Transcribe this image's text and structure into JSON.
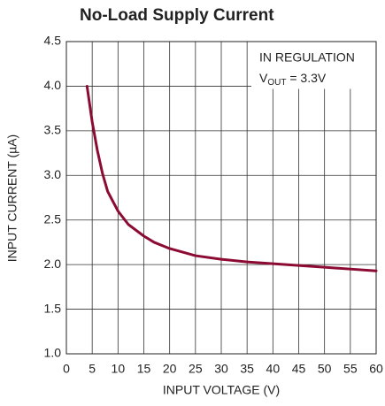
{
  "chart_data": {
    "type": "line",
    "title": "No-Load Supply Current",
    "xlabel": "INPUT VOLTAGE (V)",
    "ylabel": "INPUT CURRENT (µA)",
    "annotation": {
      "line1": "IN REGULATION",
      "line2": [
        "V",
        "OUT",
        " = 3.3V"
      ]
    },
    "x": [
      4,
      5,
      6,
      7,
      8,
      10,
      12,
      15,
      17,
      20,
      25,
      30,
      35,
      40,
      45,
      50,
      55,
      60
    ],
    "series": [
      {
        "name": null,
        "color": "#8c0b33",
        "values": [
          4.0,
          3.6,
          3.28,
          3.02,
          2.82,
          2.6,
          2.45,
          2.32,
          2.25,
          2.18,
          2.1,
          2.06,
          2.03,
          2.01,
          1.99,
          1.97,
          1.95,
          1.93
        ]
      }
    ],
    "xlim": [
      0,
      60
    ],
    "xticks": [
      0,
      5,
      10,
      15,
      20,
      25,
      30,
      35,
      40,
      45,
      50,
      55,
      60
    ],
    "ylim": [
      1,
      4.5
    ],
    "yticks": [
      {
        "value": 1,
        "label": "1.0"
      },
      1.5,
      {
        "value": 2,
        "label": "2.0"
      },
      2.5,
      {
        "value": 3,
        "label": "3.0"
      },
      3.5,
      {
        "value": 4,
        "label": "4.0"
      },
      4.5
    ],
    "grid": true
  }
}
